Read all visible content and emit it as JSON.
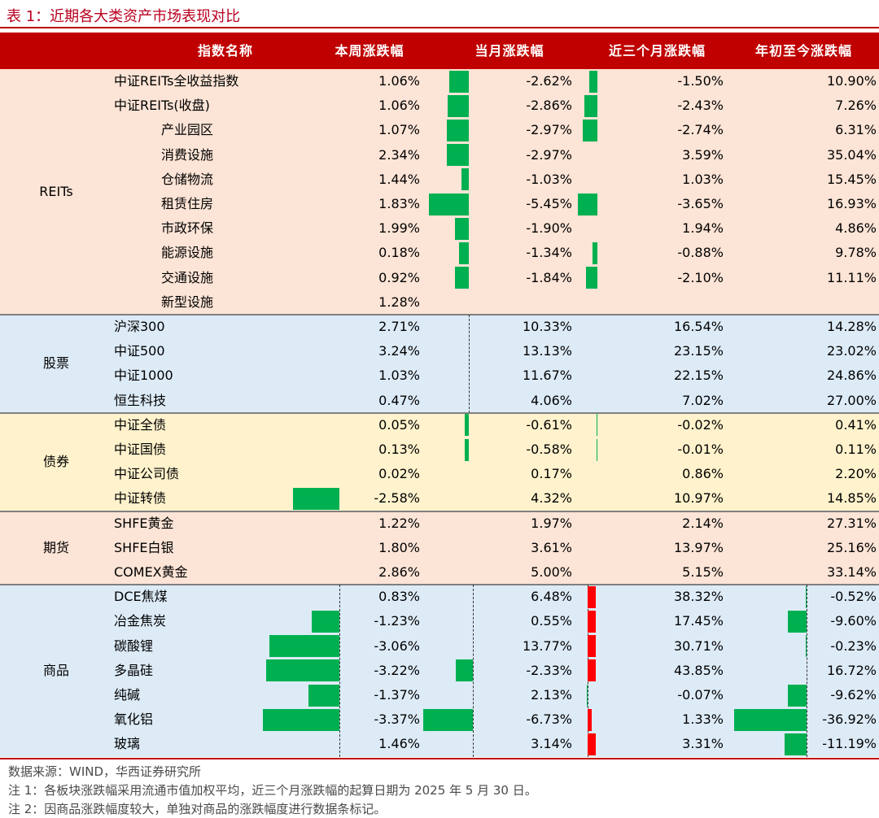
{
  "title": "表 1：近期各大类资产市场表现对比",
  "headers": [
    "指数名称",
    "本周涨跌幅",
    "当月涨跌幅",
    "近三个月涨跌幅",
    "年初至今涨跌幅"
  ],
  "colors": {
    "up": "#ff0000",
    "down": "#00b050",
    "header": "#c00000",
    "reits_bg": "#fce4d6",
    "stock_bg": "#ddebf7",
    "bond_bg": "#fff2cc",
    "futures_bg": "#fce4d6",
    "commodity_bg": "#ddebf7"
  },
  "groups": [
    {
      "name": "REITs",
      "rows": [
        {
          "name": "中证REITs全收益指数",
          "indent": false,
          "week": 1.06,
          "month": -2.62,
          "three_month": -1.5,
          "ytd": 10.9
        },
        {
          "name": "中证REITs(收盘)",
          "indent": false,
          "week": 1.06,
          "month": -2.86,
          "three_month": -2.43,
          "ytd": 7.26
        },
        {
          "name": "产业园区",
          "indent": true,
          "week": 1.07,
          "month": -2.97,
          "three_month": -2.74,
          "ytd": 6.31
        },
        {
          "name": "消费设施",
          "indent": true,
          "week": 2.34,
          "month": -2.97,
          "three_month": 3.59,
          "ytd": 35.04
        },
        {
          "name": "仓储物流",
          "indent": true,
          "week": 1.44,
          "month": -1.03,
          "three_month": 1.03,
          "ytd": 15.45
        },
        {
          "name": "租赁住房",
          "indent": true,
          "week": 1.83,
          "month": -5.45,
          "three_month": -3.65,
          "ytd": 16.93
        },
        {
          "name": "市政环保",
          "indent": true,
          "week": 1.99,
          "month": -1.9,
          "three_month": 1.94,
          "ytd": 4.86
        },
        {
          "name": "能源设施",
          "indent": true,
          "week": 0.18,
          "month": -1.34,
          "three_month": -0.88,
          "ytd": 9.78
        },
        {
          "name": "交通设施",
          "indent": true,
          "week": 0.92,
          "month": -1.84,
          "three_month": -2.1,
          "ytd": 11.11
        },
        {
          "name": "新型设施",
          "indent": true,
          "week": 1.28,
          "month": null,
          "three_month": null,
          "ytd": null
        }
      ]
    },
    {
      "name": "股票",
      "rows": [
        {
          "name": "沪深300",
          "indent": false,
          "week": 2.71,
          "month": 10.33,
          "three_month": 16.54,
          "ytd": 14.28
        },
        {
          "name": "中证500",
          "indent": false,
          "week": 3.24,
          "month": 13.13,
          "three_month": 23.15,
          "ytd": 23.02
        },
        {
          "name": "中证1000",
          "indent": false,
          "week": 1.03,
          "month": 11.67,
          "three_month": 22.15,
          "ytd": 24.86
        },
        {
          "name": "恒生科技",
          "indent": false,
          "week": 0.47,
          "month": 4.06,
          "three_month": 7.02,
          "ytd": 27.0
        }
      ]
    },
    {
      "name": "债券",
      "rows": [
        {
          "name": "中证全债",
          "indent": false,
          "week": 0.05,
          "month": -0.61,
          "three_month": -0.02,
          "ytd": 0.41
        },
        {
          "name": "中证国债",
          "indent": false,
          "week": 0.13,
          "month": -0.58,
          "three_month": -0.01,
          "ytd": 0.11
        },
        {
          "name": "中证公司债",
          "indent": false,
          "week": 0.02,
          "month": 0.17,
          "three_month": 0.86,
          "ytd": 2.2
        },
        {
          "name": "中证转债",
          "indent": false,
          "week": -2.58,
          "month": 4.32,
          "three_month": 10.97,
          "ytd": 14.85
        }
      ]
    },
    {
      "name": "期货",
      "rows": [
        {
          "name": "SHFE黄金",
          "indent": false,
          "week": 1.22,
          "month": 1.97,
          "three_month": 2.14,
          "ytd": 27.31
        },
        {
          "name": "SHFE白银",
          "indent": false,
          "week": 1.8,
          "month": 3.61,
          "three_month": 13.97,
          "ytd": 25.16
        },
        {
          "name": "COMEX黄金",
          "indent": false,
          "week": 2.86,
          "month": 5.0,
          "three_month": 5.15,
          "ytd": 33.14
        }
      ]
    },
    {
      "name": "商品",
      "rows": [
        {
          "name": "DCE焦煤",
          "indent": false,
          "week": 0.83,
          "month": 6.48,
          "three_month": 38.32,
          "ytd": -0.52
        },
        {
          "name": "冶金焦炭",
          "indent": false,
          "week": -1.23,
          "month": 0.55,
          "three_month": 17.45,
          "ytd": -9.6
        },
        {
          "name": "碳酸锂",
          "indent": false,
          "week": -3.06,
          "month": 13.77,
          "three_month": 30.71,
          "ytd": -0.23
        },
        {
          "name": "多晶硅",
          "indent": false,
          "week": -3.22,
          "month": -2.33,
          "three_month": 43.85,
          "ytd": 16.72
        },
        {
          "name": "纯碱",
          "indent": false,
          "week": -1.37,
          "month": 2.13,
          "three_month": -0.07,
          "ytd": -9.62
        },
        {
          "name": "氧化铝",
          "indent": false,
          "week": -3.37,
          "month": -6.73,
          "three_month": 1.33,
          "ytd": -36.92
        },
        {
          "name": "玻璃",
          "indent": false,
          "week": 1.46,
          "month": 3.14,
          "three_month": 3.31,
          "ytd": -11.19
        }
      ]
    }
  ],
  "notes": [
    "数据来源：WIND，华西证券研究所",
    "注 1：各板块涨跌幅采用流通市值加权平均，近三个月涨跌幅的起算日期为 2025 年 5 月 30 日。",
    "注 2：因商品涨跌幅度较大，单独对商品的涨跌幅度进行数据条标记。"
  ]
}
